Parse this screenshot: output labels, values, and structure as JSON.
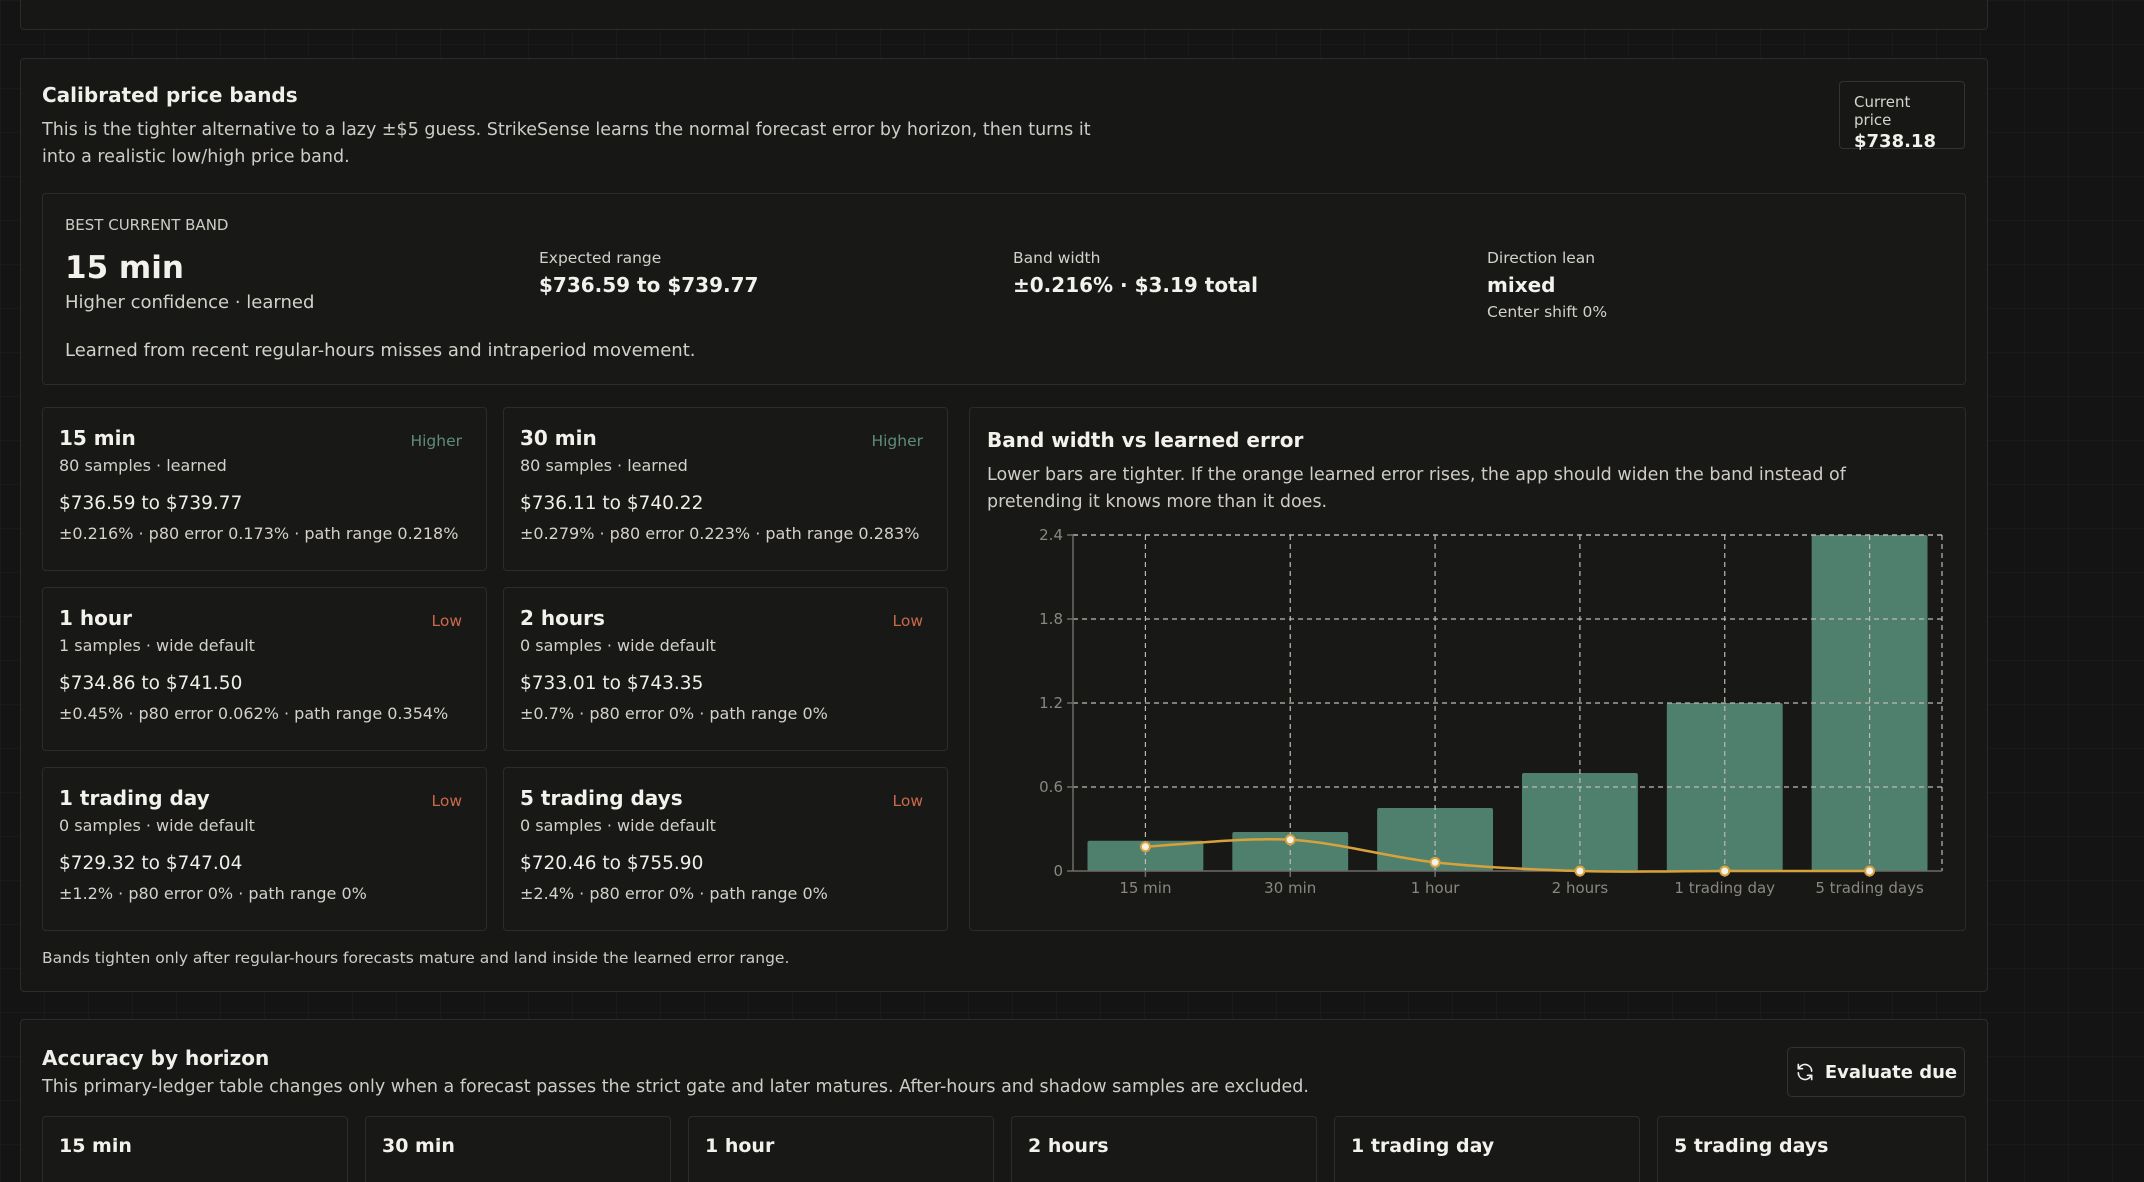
{
  "bands": {
    "title": "Calibrated price bands",
    "description": "This is the tighter alternative to a lazy ±$5 guess. StrikeSense learns the normal forecast error by horizon, then turns it into a realistic low/high price band.",
    "current_price": {
      "label": "Current price",
      "value": "$738.18"
    },
    "best": {
      "eyebrow": "BEST CURRENT BAND",
      "horizon": "15 min",
      "confidence": "Higher confidence · learned",
      "note": "Learned from recent regular-hours misses and intraperiod movement.",
      "expected_range": {
        "label": "Expected range",
        "value": "$736.59 to $739.77"
      },
      "band_width": {
        "label": "Band width",
        "value": "±0.216% · $3.19 total"
      },
      "direction": {
        "label": "Direction lean",
        "value": "mixed",
        "extra": "Center shift 0%"
      }
    },
    "cards": [
      {
        "name": "15 min",
        "confidence": "Higher",
        "level": "higher",
        "samples": "80 samples · learned",
        "range": "$736.59 to $739.77",
        "details": "±0.216% · p80 error 0.173% · path range 0.218%"
      },
      {
        "name": "30 min",
        "confidence": "Higher",
        "level": "higher",
        "samples": "80 samples · learned",
        "range": "$736.11 to $740.22",
        "details": "±0.279% · p80 error 0.223% · path range 0.283%"
      },
      {
        "name": "1 hour",
        "confidence": "Low",
        "level": "low",
        "samples": "1 samples · wide default",
        "range": "$734.86 to $741.50",
        "details": "±0.45% · p80 error 0.062% · path range 0.354%"
      },
      {
        "name": "2 hours",
        "confidence": "Low",
        "level": "low",
        "samples": "0 samples · wide default",
        "range": "$733.01 to $743.35",
        "details": "±0.7% · p80 error 0% · path range 0%"
      },
      {
        "name": "1 trading day",
        "confidence": "Low",
        "level": "low",
        "samples": "0 samples · wide default",
        "range": "$729.32 to $747.04",
        "details": "±1.2% · p80 error 0% · path range 0%"
      },
      {
        "name": "5 trading days",
        "confidence": "Low",
        "level": "low",
        "samples": "0 samples · wide default",
        "range": "$720.46 to $755.90",
        "details": "±2.4% · p80 error 0% · path range 0%"
      }
    ],
    "chart": {
      "title": "Band width vs learned error",
      "description": "Lower bars are tighter. If the orange learned error rises, the app should widen the band instead of pretending it knows more than it does."
    },
    "footnote": "Bands tighten only after regular-hours forecasts mature and land inside the learned error range."
  },
  "chart_data": {
    "type": "bar",
    "categories": [
      "15 min",
      "30 min",
      "1 hour",
      "2 hours",
      "1 trading day",
      "5 trading days"
    ],
    "series": [
      {
        "values": [
          0.216,
          0.279,
          0.45,
          0.7,
          1.2,
          2.4
        ],
        "color": "#4f7f6d",
        "kind": "bar"
      },
      {
        "values": [
          0.173,
          0.223,
          0.062,
          0,
          0,
          0
        ],
        "color": "#d7a23c",
        "kind": "line"
      }
    ],
    "yticks": [
      0,
      0.6,
      1.2,
      1.8,
      2.4
    ],
    "ylim": [
      0,
      2.4
    ],
    "grid": true
  },
  "accuracy": {
    "title": "Accuracy by horizon",
    "description": "This primary-ledger table changes only when a forecast passes the strict gate and later matures. After-hours and shadow samples are excluded.",
    "evaluate_label": "Evaluate due",
    "cards": [
      {
        "name": "15 min"
      },
      {
        "name": "30 min"
      },
      {
        "name": "1 hour"
      },
      {
        "name": "2 hours"
      },
      {
        "name": "1 trading day"
      },
      {
        "name": "5 trading days"
      }
    ]
  },
  "colors": {
    "accent_green": "#4f7f6d",
    "accent_orange": "#d7a23c",
    "low": "#c9684b",
    "higher": "#5e8c7b"
  }
}
